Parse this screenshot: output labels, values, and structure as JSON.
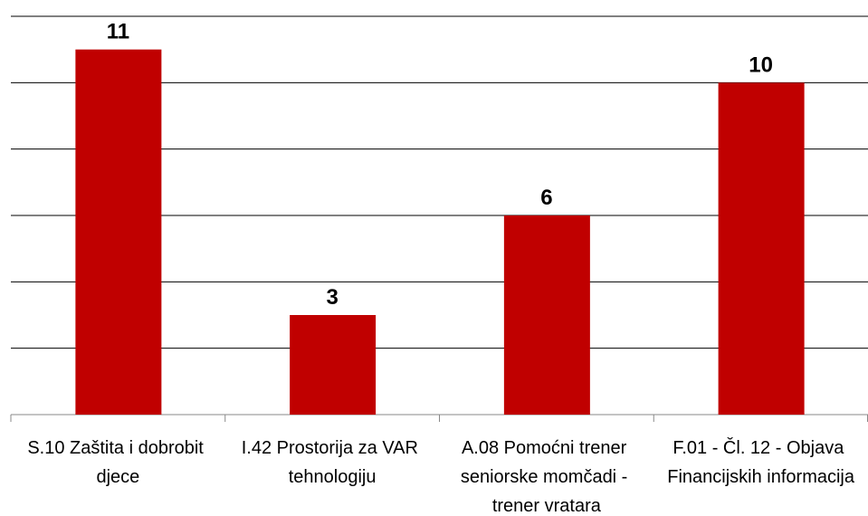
{
  "chart_data": {
    "type": "bar",
    "categories": [
      "S.10 Zaštita i dobrobit djece",
      "I.42 Prostorija za VAR tehnologiju",
      "A.08 Pomoćni trener seniorske momčadi - trener vratara",
      "F.01 - Čl. 12 - Objava Financijskih informacija"
    ],
    "values": [
      11,
      3,
      6,
      10
    ],
    "color": "#c00000",
    "ylim": [
      0,
      12
    ],
    "yticks": [
      0,
      2,
      4,
      6,
      8,
      10,
      12
    ],
    "grid": true
  }
}
